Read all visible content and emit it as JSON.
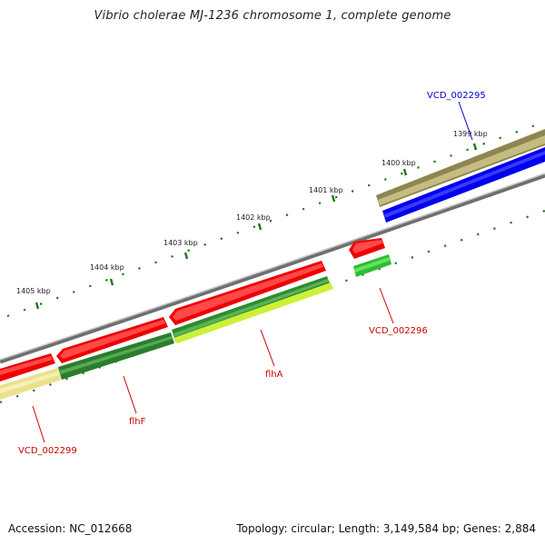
{
  "title": "Vibrio cholerae MJ-1236 chromosome 1, complete genome",
  "footer": {
    "accession": "Accession: NC_012668",
    "summary": "Topology: circular; Length: 3,149,584 bp; Genes: 2,884"
  },
  "scale_labels": [
    "1399 kbp",
    "1400 kbp",
    "1401 kbp",
    "1402 kbp",
    "1403 kbp",
    "1404 kbp",
    "1405 kbp"
  ],
  "gene_labels": [
    {
      "id": "VCD_002295",
      "color": "#0000cc"
    },
    {
      "id": "VCD_002296",
      "color": "#cc0000"
    },
    {
      "id": "flhA",
      "color": "#cc0000"
    },
    {
      "id": "flhF",
      "color": "#cc0000"
    },
    {
      "id": "VCD_002299",
      "color": "#cc0000"
    }
  ],
  "colors": {
    "backbone": "#7a7a7a",
    "tick": "#1a7a1a",
    "red": "#ee0000",
    "dark_green": "#2e8b2e",
    "light_green": "#33cc33",
    "yellow_green": "#ccee33",
    "olive": "#a59a5a",
    "pale_yellow": "#ece08a",
    "blue": "#0000ee"
  }
}
